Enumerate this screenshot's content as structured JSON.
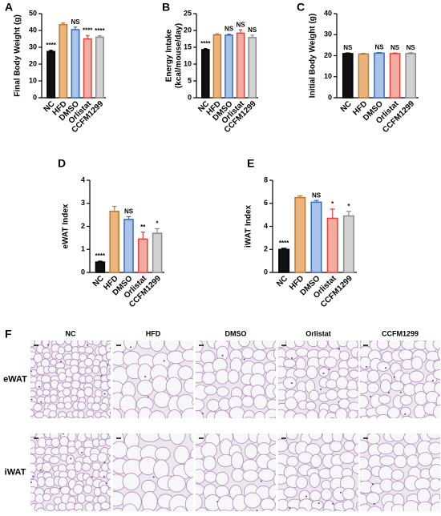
{
  "chart_data": [
    {
      "type": "bar",
      "panel": "A",
      "ylabel": "Final Body Weight (g)",
      "categories": [
        "NC",
        "HFD",
        "DMSO",
        "Orlistat",
        "CCFM1299"
      ],
      "values": [
        27.5,
        43.5,
        40.5,
        35,
        36
      ],
      "errors": [
        0.7,
        1,
        1.5,
        2,
        0.8
      ],
      "significance": [
        "****",
        null,
        "NS",
        "****",
        "****"
      ],
      "colors": [
        "#111111",
        "#eab47a",
        "#a9c4e8",
        "#f2aca2",
        "#d2d2d2"
      ],
      "edge_colors": [
        "#000000",
        "#b8783a",
        "#3a6bb5",
        "#d9453a",
        "#8a8a8a"
      ],
      "ylim": [
        0,
        50
      ],
      "yticks": [
        0,
        10,
        20,
        30,
        40,
        50
      ]
    },
    {
      "type": "bar",
      "panel": "B",
      "ylabel": [
        "Energy Intake",
        "(kcal/mouse/day)"
      ],
      "categories": [
        "NC",
        "HFD",
        "DMSO",
        "Orlistat",
        "CCFM1299"
      ],
      "values": [
        14.3,
        18.7,
        18.6,
        19.2,
        17.9
      ],
      "errors": [
        0.3,
        0.3,
        0.3,
        1,
        0.7
      ],
      "significance": [
        "****",
        null,
        "NS",
        "NS",
        "NS"
      ],
      "colors": [
        "#111111",
        "#eab47a",
        "#a9c4e8",
        "#f2aca2",
        "#d2d2d2"
      ],
      "edge_colors": [
        "#000000",
        "#b8783a",
        "#3a6bb5",
        "#d9453a",
        "#8a8a8a"
      ],
      "ylim": [
        0,
        25
      ],
      "yticks": [
        0,
        5,
        10,
        15,
        20,
        25
      ]
    },
    {
      "type": "bar",
      "panel": "C",
      "ylabel": "Initial Body Weight (g)",
      "categories": [
        "NC",
        "HFD",
        "DMSO",
        "Orlistat",
        "CCFM1299"
      ],
      "values": [
        21,
        20.8,
        21.2,
        21,
        21
      ],
      "errors": [
        0.3,
        0.3,
        0.3,
        0.3,
        0.4
      ],
      "significance": [
        "NS",
        null,
        "NS",
        "NS",
        "NS"
      ],
      "colors": [
        "#111111",
        "#eab47a",
        "#a9c4e8",
        "#f2aca2",
        "#d2d2d2"
      ],
      "edge_colors": [
        "#000000",
        "#b8783a",
        "#3a6bb5",
        "#d9453a",
        "#8a8a8a"
      ],
      "ylim": [
        0,
        40
      ],
      "yticks": [
        0,
        10,
        20,
        30,
        40
      ]
    },
    {
      "type": "bar",
      "panel": "D",
      "ylabel": "eWAT Index",
      "categories": [
        "NC",
        "HFD",
        "DMSO",
        "Orlistat",
        "CCFM1299"
      ],
      "values": [
        0.45,
        2.65,
        2.3,
        1.45,
        1.7
      ],
      "errors": [
        0.04,
        0.22,
        0.12,
        0.3,
        0.2
      ],
      "significance": [
        "****",
        null,
        "NS",
        "**",
        "*"
      ],
      "colors": [
        "#111111",
        "#eab47a",
        "#a9c4e8",
        "#f2aca2",
        "#d2d2d2"
      ],
      "edge_colors": [
        "#000000",
        "#b8783a",
        "#3a6bb5",
        "#d9453a",
        "#8a8a8a"
      ],
      "ylim": [
        0,
        4
      ],
      "yticks": [
        0,
        1,
        2,
        3,
        4
      ]
    },
    {
      "type": "bar",
      "panel": "E",
      "ylabel": "iWAT Index",
      "categories": [
        "NC",
        "HFD",
        "DMSO",
        "Orlistat",
        "CCFM1299"
      ],
      "values": [
        2.0,
        6.5,
        6.1,
        4.7,
        4.9
      ],
      "errors": [
        0.1,
        0.15,
        0.15,
        0.8,
        0.4
      ],
      "significance": [
        "****",
        null,
        "NS",
        "*",
        "*"
      ],
      "colors": [
        "#111111",
        "#eab47a",
        "#a9c4e8",
        "#f2aca2",
        "#d2d2d2"
      ],
      "edge_colors": [
        "#000000",
        "#b8783a",
        "#3a6bb5",
        "#d9453a",
        "#8a8a8a"
      ],
      "ylim": [
        0,
        8
      ],
      "yticks": [
        0,
        2,
        4,
        6,
        8
      ]
    }
  ],
  "histology": {
    "panel": "F",
    "columns": [
      "NC",
      "HFD",
      "DMSO",
      "Orlistat",
      "CCFM1299"
    ],
    "rows": [
      "eWAT",
      "iWAT"
    ]
  }
}
